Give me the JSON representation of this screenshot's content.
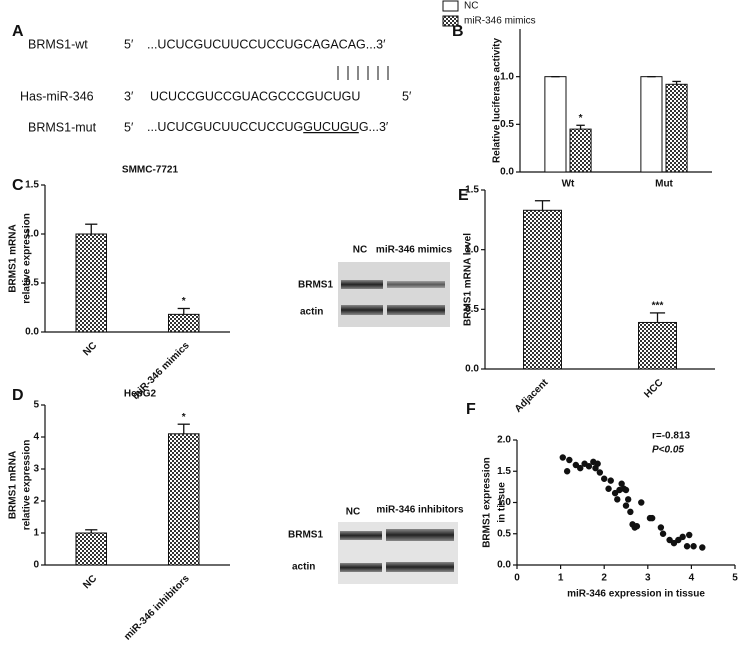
{
  "panel_labels": [
    "A",
    "B",
    "C",
    "D",
    "E",
    "F"
  ],
  "sequence_panel": {
    "wt": {
      "name": "BRMS1-wt",
      "end5": "5′",
      "sequence": "...UCUCGUCUUCCUCCUGCAGACAG...3′"
    },
    "mir": {
      "name": "Has-miR-346",
      "end3": "3′",
      "sequence": "UCUCCGUCCGUACGCCCGUCUGU",
      "end5": "5′"
    },
    "mut": {
      "name": "BRMS1-mut",
      "end5": "5′",
      "sequence_start": "...UCUCGUCUUCCUCCUG",
      "mutated": "GUCUGU",
      "sequence_end": "G...3′"
    }
  },
  "blots": [
    {
      "lanes": [
        "NC",
        "miR-346 mimics"
      ],
      "rows": [
        "BRMS1",
        "actin"
      ]
    },
    {
      "lanes": [
        "NC",
        "miR-346 inhibitors"
      ],
      "rows": [
        "BRMS1",
        "actin"
      ]
    }
  ],
  "chart_data": [
    {
      "type": "bar",
      "ylabel": [
        "Relative luciferase activity"
      ],
      "categories": [
        "Wt",
        "Mut"
      ],
      "series": [
        {
          "name": "NC",
          "color": "#ffffff",
          "values": [
            1.0,
            1.0
          ],
          "errors": [
            0.0,
            0.0
          ],
          "significance": [
            null,
            null
          ]
        },
        {
          "name": "miR-346 mimics",
          "color": "#555555",
          "values": [
            0.45,
            0.92
          ],
          "errors": [
            0.04,
            0.03
          ],
          "significance": [
            "*",
            null
          ]
        }
      ],
      "ylim": [
        0,
        1.5
      ],
      "yticks": [
        {
          "value": 0,
          "label": "0.0"
        },
        0.5,
        {
          "value": 1,
          "label": "1.0"
        }
      ],
      "legend": "top-left",
      "rotate_categories": false
    },
    {
      "type": "bar",
      "title": "SMMC-7721",
      "ylabel": [
        "BRMS1 mRNA",
        "relative expression"
      ],
      "categories": [
        "NC",
        "miR-346 mimics"
      ],
      "values": [
        1.0,
        0.18
      ],
      "errors": [
        0.1,
        0.06
      ],
      "significance": [
        null,
        "*"
      ],
      "color": "#555555",
      "ylim": [
        0,
        1.5
      ],
      "yticks": [
        {
          "value": 0,
          "label": "0.0"
        },
        0.5,
        {
          "value": 1,
          "label": "1.0"
        },
        1.5
      ],
      "rotate_categories": true
    },
    {
      "type": "bar",
      "title": "HepG2",
      "ylabel": [
        "BRMS1 mRNA",
        "relative expression"
      ],
      "categories": [
        "NC",
        "miR-346 inhibitors"
      ],
      "values": [
        1.0,
        4.1
      ],
      "errors": [
        0.1,
        0.3
      ],
      "significance": [
        null,
        "*"
      ],
      "color": "#555555",
      "ylim": [
        0,
        5
      ],
      "yticks": [
        0,
        1,
        2,
        3,
        4,
        5
      ],
      "rotate_categories": true
    },
    {
      "type": "bar",
      "ylabel": [
        "BRMS1 mRNA level"
      ],
      "categories": [
        "Adjacent",
        "HCC"
      ],
      "values": [
        1.33,
        0.39
      ],
      "errors": [
        0.08,
        0.08
      ],
      "significance": [
        null,
        "***"
      ],
      "color": "#555555",
      "ylim": [
        0,
        1.5
      ],
      "yticks": [
        {
          "value": 0,
          "label": "0.0"
        },
        0.5,
        {
          "value": 1,
          "label": "1.0"
        },
        1.5
      ],
      "rotate_categories": true
    },
    {
      "type": "scatter",
      "xlabel": "miR-346 expression in tissue",
      "ylabel": [
        "BRMS1 expression",
        "in tissue"
      ],
      "annotations": [
        "r=-0.813",
        "P<0.05"
      ],
      "color": "#111111",
      "x": [
        1.05,
        1.15,
        1.2,
        1.35,
        1.45,
        1.55,
        1.65,
        1.75,
        1.8,
        1.85,
        1.9,
        2.0,
        2.1,
        2.15,
        2.25,
        2.3,
        2.35,
        2.4,
        2.45,
        2.5,
        2.5,
        2.55,
        2.6,
        2.65,
        2.7,
        2.75,
        2.85,
        3.05,
        3.1,
        3.3,
        3.35,
        3.5,
        3.6,
        3.7,
        3.8,
        3.9,
        3.95,
        4.05,
        4.25
      ],
      "values": [
        1.72,
        1.5,
        1.68,
        1.6,
        1.55,
        1.62,
        1.58,
        1.65,
        1.55,
        1.62,
        1.48,
        1.38,
        1.22,
        1.35,
        1.15,
        1.05,
        1.2,
        1.3,
        1.22,
        1.2,
        0.95,
        1.05,
        0.85,
        0.65,
        0.6,
        0.62,
        1.0,
        0.75,
        0.75,
        0.6,
        0.5,
        0.4,
        0.35,
        0.4,
        0.45,
        0.3,
        0.48,
        0.3,
        0.28
      ],
      "xlim": [
        0,
        5
      ],
      "xticks": [
        0,
        1,
        2,
        3,
        4,
        5
      ],
      "ylim": [
        0,
        2
      ],
      "yticks": [
        {
          "value": 0,
          "label": "0.0"
        },
        0.5,
        {
          "value": 1,
          "label": "1.0"
        },
        1.5,
        {
          "value": 2,
          "label": "2.0"
        }
      ]
    }
  ]
}
